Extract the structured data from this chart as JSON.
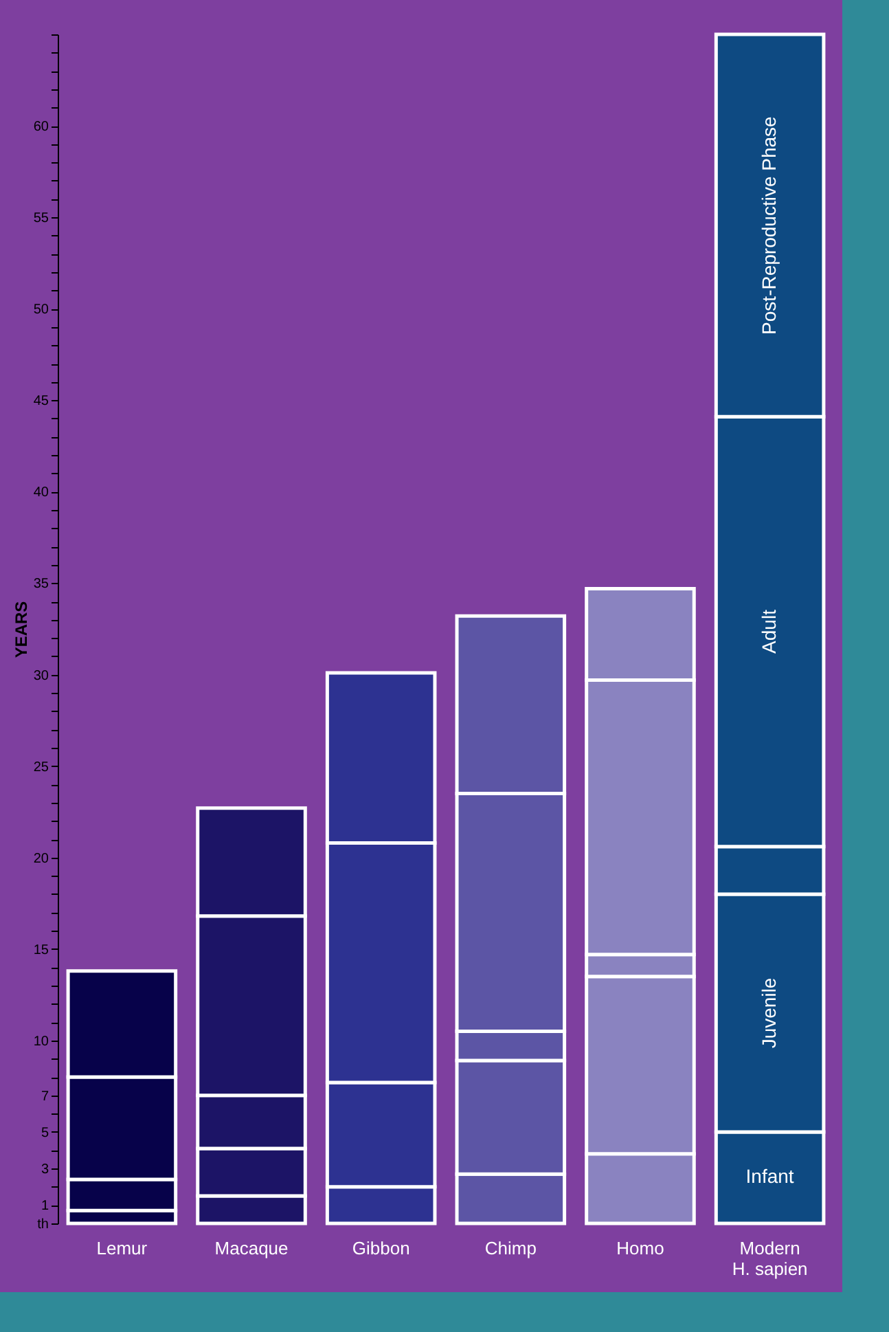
{
  "chart_data": {
    "type": "bar",
    "stacked": true,
    "ylabel": "YEARS",
    "categories": [
      "Lemur",
      "Macaque",
      "Gibbon",
      "Chimp",
      "Homo",
      "Modern\nH. sapien"
    ],
    "series": [
      {
        "colors": [
          "#07024a",
          "#1c1466",
          "#2d3291",
          "#5c55a5",
          "#8a83c0",
          "#0e4a82"
        ],
        "values": [
          0.7,
          1.5,
          2.0,
          2.7,
          3.8,
          5.0
        ],
        "value_labels": [
          null,
          null,
          null,
          null,
          null,
          "Infant"
        ]
      },
      {
        "colors": [
          "#07024a",
          "#1c1466",
          "#2d3291",
          "#5c55a5",
          "#8a83c0",
          "#0e4a82"
        ],
        "values": [
          1.7,
          2.6,
          5.7,
          6.2,
          9.7,
          13.0
        ],
        "value_labels": [
          null,
          null,
          null,
          null,
          null,
          "Juvenile"
        ]
      },
      {
        "colors": [
          "#07024a",
          "#1c1466",
          "#2d3291",
          "#5c55a5",
          "#8a83c0",
          "#0e4a82"
        ],
        "values": [
          5.6,
          2.9,
          13.1,
          1.6,
          1.2,
          2.6
        ]
      },
      {
        "colors": [
          "#07024a",
          "#1c1466",
          "#2d3291",
          "#5c55a5",
          "#8a83c0",
          "#0e4a82"
        ],
        "values": [
          5.8,
          9.8,
          9.3,
          13.0,
          15.0,
          23.5
        ],
        "value_labels": [
          null,
          null,
          null,
          null,
          null,
          "Adult"
        ]
      },
      {
        "colors": [
          null,
          "#1c1466",
          null,
          "#5c55a5",
          "#8a83c0",
          "#0e4a82"
        ],
        "values": [
          null,
          5.9,
          null,
          9.7,
          5.0,
          20.9
        ],
        "value_labels": [
          null,
          null,
          null,
          null,
          null,
          "Post-Reproductive Phase"
        ]
      }
    ],
    "ylim": [
      0,
      65
    ],
    "yticks": [
      {
        "value": 0,
        "label": "th"
      },
      1,
      {
        "value": 2,
        "label": null
      },
      3,
      {
        "value": 4,
        "label": null
      },
      5,
      {
        "value": 6,
        "label": null
      },
      7,
      {
        "value": 8,
        "label": null
      },
      {
        "value": 9,
        "label": null
      },
      10,
      {
        "value": 11,
        "label": null
      },
      {
        "value": 12,
        "label": null
      },
      {
        "value": 13,
        "label": null
      },
      {
        "value": 14,
        "label": null
      },
      15,
      {
        "value": 16,
        "label": null
      },
      {
        "value": 17,
        "label": null
      },
      {
        "value": 18,
        "label": null
      },
      {
        "value": 19,
        "label": null
      },
      20,
      {
        "value": 21,
        "label": null
      },
      {
        "value": 22,
        "label": null
      },
      {
        "value": 23,
        "label": null
      },
      {
        "value": 24,
        "label": null
      },
      25,
      {
        "value": 26,
        "label": null
      },
      {
        "value": 27,
        "label": null
      },
      {
        "value": 28,
        "label": null
      },
      {
        "value": 29,
        "label": null
      },
      30,
      {
        "value": 31,
        "label": null
      },
      {
        "value": 32,
        "label": null
      },
      {
        "value": 33,
        "label": null
      },
      {
        "value": 34,
        "label": null
      },
      35,
      {
        "value": 36,
        "label": null
      },
      {
        "value": 37,
        "label": null
      },
      {
        "value": 38,
        "label": null
      },
      {
        "value": 39,
        "label": null
      },
      40,
      {
        "value": 41,
        "label": null
      },
      {
        "value": 42,
        "label": null
      },
      {
        "value": 43,
        "label": null
      },
      {
        "value": 44,
        "label": null
      },
      45,
      {
        "value": 46,
        "label": null
      },
      {
        "value": 47,
        "label": null
      },
      {
        "value": 48,
        "label": null
      },
      {
        "value": 49,
        "label": null
      },
      50,
      {
        "value": 51,
        "label": null
      },
      {
        "value": 52,
        "label": null
      },
      {
        "value": 53,
        "label": null
      },
      {
        "value": 54,
        "label": null
      },
      55,
      {
        "value": 56,
        "label": null
      },
      {
        "value": 57,
        "label": null
      },
      {
        "value": 58,
        "label": null
      },
      {
        "value": 59,
        "label": null
      },
      60,
      {
        "value": 61,
        "label": null
      },
      {
        "value": 62,
        "label": null
      },
      {
        "value": 63,
        "label": null
      },
      {
        "value": 64,
        "label": null
      },
      {
        "value": 65,
        "label": null
      }
    ]
  }
}
